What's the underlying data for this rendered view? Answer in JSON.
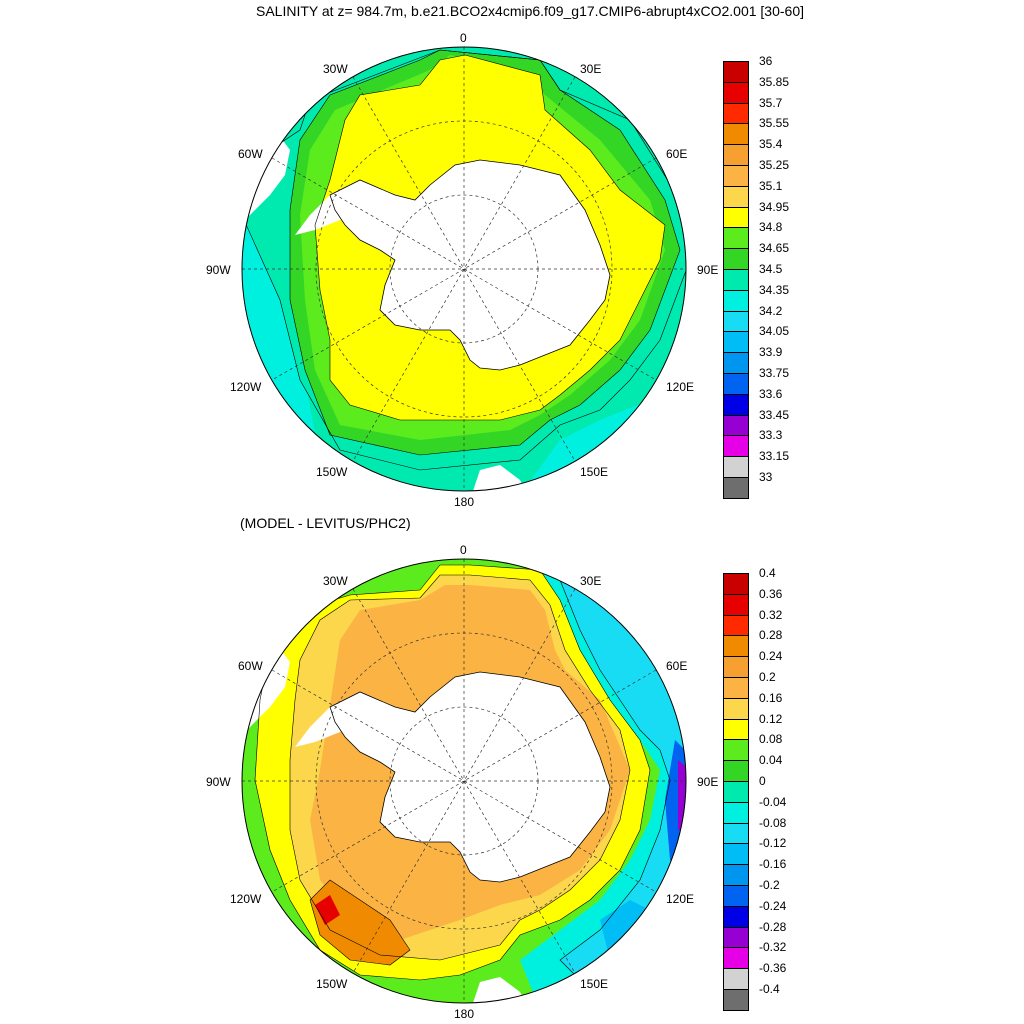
{
  "title": "SALINITY at z= 984.7m, b.e21.BCO2x4cmip6.f09_g17.CMIP6-abrupt4xCO2.001 [30-60]",
  "subtitle": "(MODEL - LEVITUS/PHC2)",
  "longitude_labels": [
    "0",
    "30E",
    "60E",
    "90E",
    "120E",
    "150E",
    "180",
    "150W",
    "120W",
    "90W",
    "60W",
    "30W"
  ],
  "top_panel": {
    "legend": {
      "labels": [
        "36",
        "35.85",
        "35.7",
        "35.55",
        "35.4",
        "35.25",
        "35.1",
        "34.95",
        "34.8",
        "34.65",
        "34.5",
        "34.35",
        "34.2",
        "34.05",
        "33.9",
        "33.75",
        "33.6",
        "33.45",
        "33.3",
        "33.15",
        "33"
      ],
      "colors": [
        "#c80000",
        "#e60000",
        "#ff2a00",
        "#f08a00",
        "#f5a030",
        "#fbb444",
        "#fcd74c",
        "#ffff00",
        "#5cec1e",
        "#34d626",
        "#00eab0",
        "#00f0e0",
        "#18dcf4",
        "#00bef5",
        "#0096f0",
        "#0064f0",
        "#0000e6",
        "#9600d2",
        "#e600e6",
        "#d2d2d2",
        "#6e6e6e"
      ]
    }
  },
  "bottom_panel": {
    "legend": {
      "labels": [
        "0.4",
        "0.36",
        "0.32",
        "0.28",
        "0.24",
        "0.2",
        "0.16",
        "0.12",
        "0.08",
        "0.04",
        "0",
        "-0.04",
        "-0.08",
        "-0.12",
        "-0.16",
        "-0.2",
        "-0.24",
        "-0.28",
        "-0.32",
        "-0.36",
        "-0.4"
      ],
      "colors": [
        "#c80000",
        "#e60000",
        "#ff2a00",
        "#f08a00",
        "#f5a030",
        "#fbb444",
        "#fcd74c",
        "#ffff00",
        "#5cec1e",
        "#34d626",
        "#00eab0",
        "#00f0e0",
        "#18dcf4",
        "#00bef5",
        "#0096f0",
        "#0064f0",
        "#0000e6",
        "#9600d2",
        "#e600e6",
        "#d2d2d2",
        "#6e6e6e"
      ]
    }
  }
}
